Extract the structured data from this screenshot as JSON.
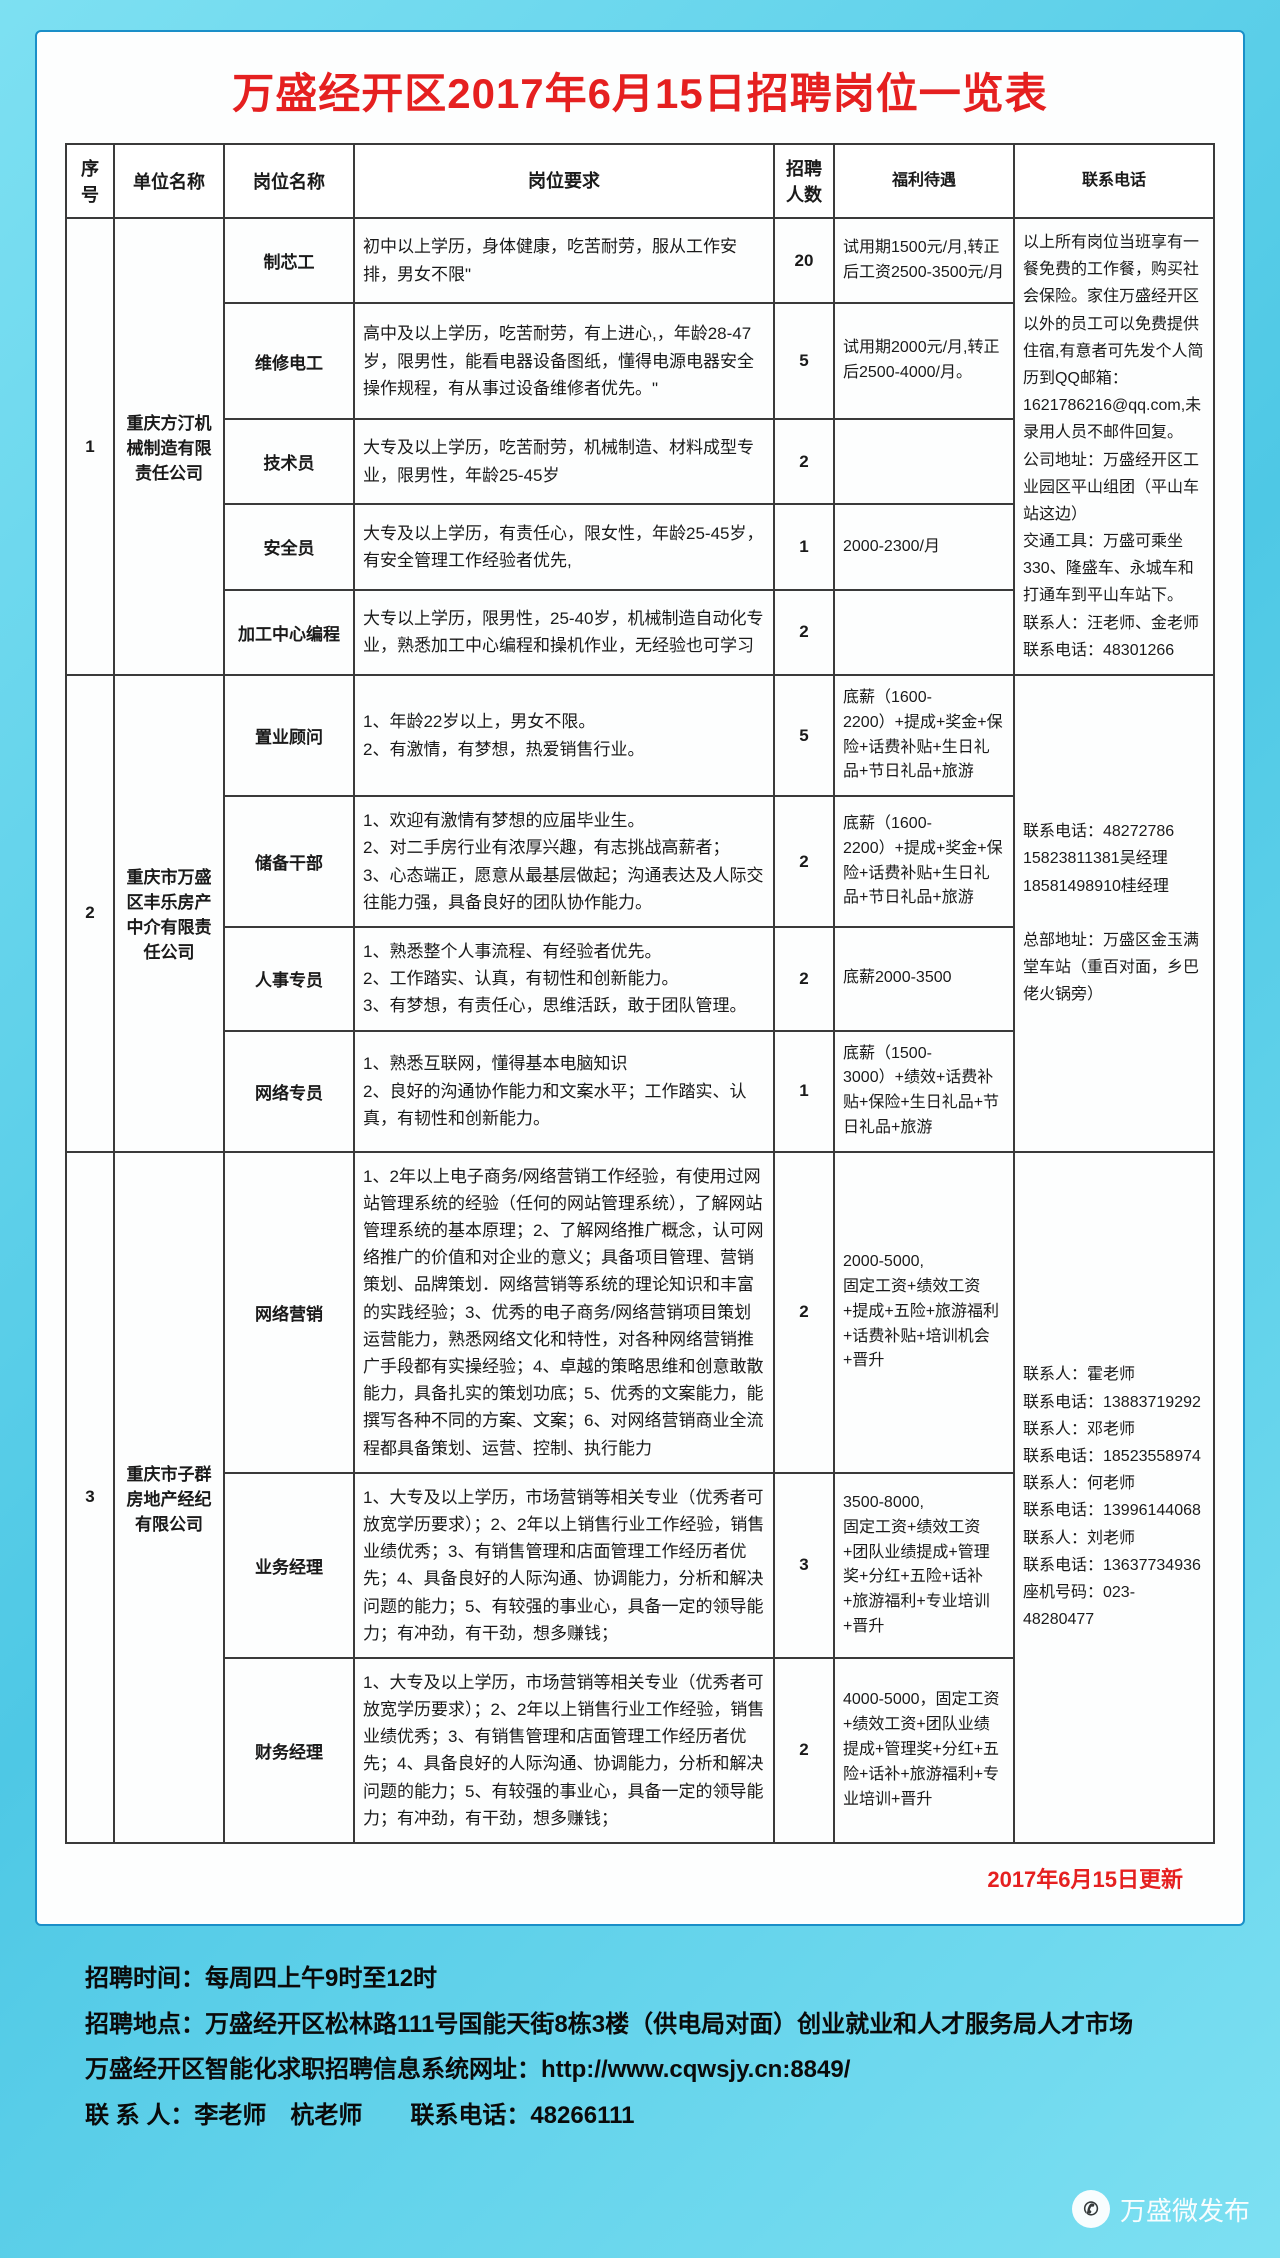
{
  "title": "万盛经开区2017年6月15日招聘岗位一览表",
  "headers": {
    "seq": "序号",
    "company": "单位名称",
    "position": "岗位名称",
    "requirement": "岗位要求",
    "count": "招聘人数",
    "benefit": "福利待遇",
    "contact": "联系电话"
  },
  "groups": [
    {
      "seq": "1",
      "company": "重庆方汀机械制造有限责任公司",
      "contact": "以上所有岗位当班享有一餐免费的工作餐，购买社会保险。家住万盛经开区以外的员工可以免费提供住宿,有意者可先发个人简历到QQ邮箱：1621786216@qq.com,未录用人员不邮件回复。\n公司地址：万盛经开区工业园区平山组团（平山车站这边）\n交通工具：万盛可乘坐330、隆盛车、永城车和打通车到平山车站下。\n联系人：汪老师、金老师　　联系电话：48301266",
      "rows": [
        {
          "position": "制芯工",
          "requirement": "初中以上学历，身体健康，吃苦耐劳，服从工作安排，男女不限\"",
          "count": "20",
          "benefit": "试用期1500元/月,转正后工资2500-3500元/月"
        },
        {
          "position": "维修电工",
          "requirement": "高中及以上学历，吃苦耐劳，有上进心,，年龄28-47岁，限男性，能看电器设备图纸，懂得电源电器安全操作规程，有从事过设备维修者优先。\"",
          "count": "5",
          "benefit": "试用期2000元/月,转正后2500-4000/月。"
        },
        {
          "position": "技术员",
          "requirement": "大专及以上学历，吃苦耐劳，机械制造、材料成型专业，限男性，年龄25-45岁",
          "count": "2",
          "benefit": ""
        },
        {
          "position": "安全员",
          "requirement": "大专及以上学历，有责任心，限女性，年龄25-45岁，有安全管理工作经验者优先,",
          "count": "1",
          "benefit": "2000-2300/月"
        },
        {
          "position": "加工中心编程",
          "requirement": "大专以上学历，限男性，25-40岁，机械制造自动化专业，熟悉加工中心编程和操机作业，无经验也可学习",
          "count": "2",
          "benefit": ""
        }
      ]
    },
    {
      "seq": "2",
      "company": "重庆市万盛区丰乐房产中介有限责任公司",
      "contact": "联系电话：48272786\n15823811381吴经理\n18581498910桂经理\n\n总部地址：万盛区金玉满堂车站（重百对面，乡巴佬火锅旁）",
      "rows": [
        {
          "position": "置业顾问",
          "requirement": "1、年龄22岁以上，男女不限。\n2、有激情，有梦想，热爱销售行业。",
          "count": "5",
          "benefit": "底薪（1600-2200）+提成+奖金+保险+话费补贴+生日礼品+节日礼品+旅游"
        },
        {
          "position": "储备干部",
          "requirement": "1、欢迎有激情有梦想的应届毕业生。\n2、对二手房行业有浓厚兴趣，有志挑战高薪者；\n3、心态端正，愿意从最基层做起；沟通表达及人际交往能力强，具备良好的团队协作能力。",
          "count": "2",
          "benefit": "底薪（1600-2200）+提成+奖金+保险+话费补贴+生日礼品+节日礼品+旅游"
        },
        {
          "position": "人事专员",
          "requirement": "1、熟悉整个人事流程、有经验者优先。\n2、工作踏实、认真，有韧性和创新能力。\n3、有梦想，有责任心，思维活跃，敢于团队管理。",
          "count": "2",
          "benefit": "底薪2000-3500"
        },
        {
          "position": "网络专员",
          "requirement": "1、熟悉互联网，懂得基本电脑知识\n2、良好的沟通协作能力和文案水平；工作踏实、认真，有韧性和创新能力。",
          "count": "1",
          "benefit": "底薪（1500-3000）+绩效+话费补贴+保险+生日礼品+节日礼品+旅游"
        }
      ]
    },
    {
      "seq": "3",
      "company": "重庆市子群房地产经纪有限公司",
      "contact": "联系人：霍老师\n联系电话：13883719292\n联系人：邓老师\n联系电话：18523558974\n联系人：何老师\n联系电话：13996144068\n联系人：刘老师\n联系电话：13637734936\n座机号码：023-48280477",
      "rows": [
        {
          "position": "网络营销",
          "requirement": "1、2年以上电子商务/网络营销工作经验，有使用过网站管理系统的经验（任何的网站管理系统），了解网站管理系统的基本原理；2、了解网络推广概念，认可网络推广的价值和对企业的意义；具备项目管理、营销策划、品牌策划．网络营销等系统的理论知识和丰富的实践经验；3、优秀的电子商务/网络营销项目策划运营能力，熟悉网络文化和特性，对各种网络营销推广手段都有实操经验；4、卓越的策略思维和创意敢散能力，具备扎实的策划功底；5、优秀的文案能力，能撰写各种不同的方案、文案；6、对网络营销商业全流程都具备策划、运营、控制、执行能力",
          "count": "2",
          "benefit": "2000-5000,\n固定工资+绩效工资+提成+五险+旅游福利+话费补贴+培训机会+晋升"
        },
        {
          "position": "业务经理",
          "requirement": "1、大专及以上学历，市场营销等相关专业（优秀者可放宽学历要求）；2、2年以上销售行业工作经验，销售业绩优秀；3、有销售管理和店面管理工作经历者优先；4、具备良好的人际沟通、协调能力，分析和解决问题的能力；5、有较强的事业心，具备一定的领导能力；有冲劲，有干劲，想多赚钱；",
          "count": "3",
          "benefit": "3500-8000,\n固定工资+绩效工资+团队业绩提成+管理奖+分红+五险+话补+旅游福利+专业培训+晋升"
        },
        {
          "position": "财务经理",
          "requirement": "1、大专及以上学历，市场营销等相关专业（优秀者可放宽学历要求）；2、2年以上销售行业工作经验，销售业绩优秀；3、有销售管理和店面管理工作经历者优先；4、具备良好的人际沟通、协调能力，分析和解决问题的能力；5、有较强的事业心，具备一定的领导能力；有冲劲，有干劲，想多赚钱；",
          "count": "2",
          "benefit": "4000-5000，固定工资+绩效工资+团队业绩提成+管理奖+分红+五险+话补+旅游福利+专业培训+晋升"
        }
      ]
    }
  ],
  "update_note": "2017年6月15日更新",
  "footer": {
    "line1": "招聘时间：每周四上午9时至12时",
    "line2": "招聘地点：万盛经开区松林路111号国能天街8栋3楼（供电局对面）创业就业和人才服务局人才市场",
    "line3": "万盛经开区智能化求职招聘信息系统网址：http://www.cqwsjy.cn:8849/",
    "line4": "联 系 人：李老师　杭老师　　联系电话：48266111"
  },
  "watermark": "万盛微发布"
}
